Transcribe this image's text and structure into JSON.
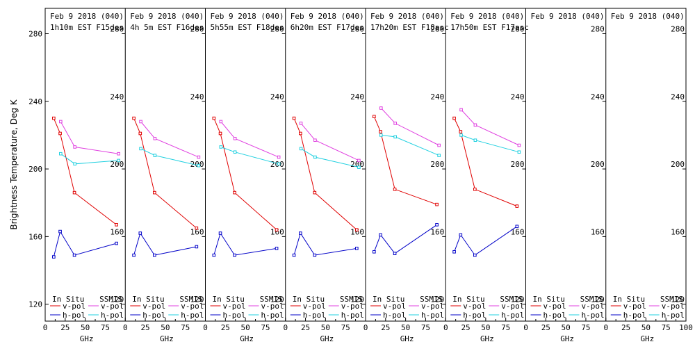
{
  "ylabel": "Brightness Temperature, Deg K",
  "legend": {
    "insitu": "In Situ",
    "ssmis": "SSMIS",
    "vpol": "v-pol",
    "hpol": "h-pol"
  },
  "colors": {
    "insitu_v": "#e00000",
    "insitu_h": "#0000c8",
    "ssmis_v": "#e040e0",
    "ssmis_h": "#20d0e0"
  },
  "chart_data": {
    "type": "line",
    "xlabel": "GHz",
    "xlim": [
      0,
      100
    ],
    "ylim": [
      110,
      295
    ],
    "xticks": [
      0,
      25,
      50,
      75
    ],
    "xticks_last_panel": [
      0,
      25,
      50,
      75,
      100
    ],
    "yticks": [
      120,
      160,
      200,
      240,
      280
    ],
    "panels": [
      {
        "title": "Feb 9 2018 (040)",
        "subtitle": "1h10m EST F15des",
        "series": [
          {
            "kind": "insitu_v",
            "x": [
              10.7,
              18.7,
              36.5,
              89
            ],
            "y": [
              230,
              221,
              186,
              167
            ]
          },
          {
            "kind": "insitu_h",
            "x": [
              10.7,
              18.7,
              36.5,
              89
            ],
            "y": [
              148,
              163,
              149,
              156
            ]
          },
          {
            "kind": "ssmis_v",
            "x": [
              19.35,
              37,
              91.655
            ],
            "y": [
              228,
              213,
              209
            ]
          },
          {
            "kind": "ssmis_h",
            "x": [
              19.35,
              37,
              91.655
            ],
            "y": [
              209,
              203,
              205
            ]
          }
        ]
      },
      {
        "title": "Feb 9 2018 (040)",
        "subtitle": "4h 5m EST F16des",
        "series": [
          {
            "kind": "insitu_v",
            "x": [
              10.7,
              18.7,
              36.5,
              89
            ],
            "y": [
              230,
              221,
              186,
              165
            ]
          },
          {
            "kind": "insitu_h",
            "x": [
              10.7,
              18.7,
              36.5,
              89
            ],
            "y": [
              149,
              162,
              149,
              154
            ]
          },
          {
            "kind": "ssmis_v",
            "x": [
              19.35,
              37,
              91.655
            ],
            "y": [
              228,
              218,
              207
            ]
          },
          {
            "kind": "ssmis_h",
            "x": [
              19.35,
              37,
              91.655
            ],
            "y": [
              212,
              208,
              202
            ]
          }
        ]
      },
      {
        "title": "Feb 9 2018 (040)",
        "subtitle": "5h55m EST F18des",
        "series": [
          {
            "kind": "insitu_v",
            "x": [
              10.7,
              18.7,
              36.5,
              89
            ],
            "y": [
              230,
              221,
              186,
              164
            ]
          },
          {
            "kind": "insitu_h",
            "x": [
              10.7,
              18.7,
              36.5,
              89
            ],
            "y": [
              149,
              162,
              149,
              153
            ]
          },
          {
            "kind": "ssmis_v",
            "x": [
              19.35,
              37,
              91.655
            ],
            "y": [
              228,
              218,
              207
            ]
          },
          {
            "kind": "ssmis_h",
            "x": [
              19.35,
              37,
              91.655
            ],
            "y": [
              213,
              210,
              203
            ]
          }
        ]
      },
      {
        "title": "Feb 9 2018 (040)",
        "subtitle": "6h20m EST F17des",
        "series": [
          {
            "kind": "insitu_v",
            "x": [
              10.7,
              18.7,
              36.5,
              89
            ],
            "y": [
              230,
              221,
              186,
              164
            ]
          },
          {
            "kind": "insitu_h",
            "x": [
              10.7,
              18.7,
              36.5,
              89
            ],
            "y": [
              149,
              162,
              149,
              153
            ]
          },
          {
            "kind": "ssmis_v",
            "x": [
              19.35,
              37,
              91.655
            ],
            "y": [
              227,
              217,
              205
            ]
          },
          {
            "kind": "ssmis_h",
            "x": [
              19.35,
              37,
              91.655
            ],
            "y": [
              212,
              207,
              201
            ]
          }
        ]
      },
      {
        "title": "Feb 9 2018 (040)",
        "subtitle": "17h20m EST F18asc",
        "series": [
          {
            "kind": "insitu_v",
            "x": [
              10.7,
              18.7,
              36.5,
              89
            ],
            "y": [
              231,
              222,
              188,
              179
            ]
          },
          {
            "kind": "insitu_h",
            "x": [
              10.7,
              18.7,
              36.5,
              89
            ],
            "y": [
              151,
              161,
              150,
              167
            ]
          },
          {
            "kind": "ssmis_v",
            "x": [
              19.35,
              37,
              91.655
            ],
            "y": [
              236,
              227,
              214
            ]
          },
          {
            "kind": "ssmis_h",
            "x": [
              19.35,
              37,
              91.655
            ],
            "y": [
              220,
              219,
              208
            ]
          }
        ]
      },
      {
        "title": "Feb 9 2018 (040)",
        "subtitle": "17h50m EST F17asc",
        "series": [
          {
            "kind": "insitu_v",
            "x": [
              10.7,
              18.7,
              36.5,
              89
            ],
            "y": [
              230,
              222,
              188,
              178
            ]
          },
          {
            "kind": "insitu_h",
            "x": [
              10.7,
              18.7,
              36.5,
              89
            ],
            "y": [
              151,
              161,
              149,
              166
            ]
          },
          {
            "kind": "ssmis_v",
            "x": [
              19.35,
              37,
              91.655
            ],
            "y": [
              235,
              226,
              214
            ]
          },
          {
            "kind": "ssmis_h",
            "x": [
              19.35,
              37,
              91.655
            ],
            "y": [
              220,
              217,
              210
            ]
          }
        ]
      },
      {
        "title": "Feb 9 2018 (040)",
        "subtitle": "",
        "series": []
      },
      {
        "title": "Feb 9 2018 (040)",
        "subtitle": "",
        "series": []
      }
    ]
  }
}
